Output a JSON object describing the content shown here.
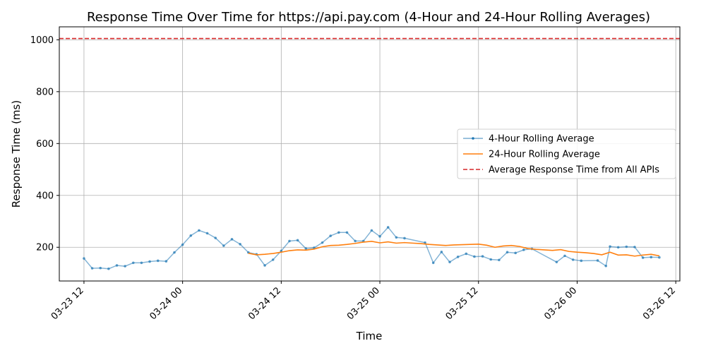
{
  "chart_data": {
    "type": "line",
    "title": "Response Time Over Time for https://api.pay.com (4-Hour and 24-Hour Rolling Averages)",
    "xlabel": "Time",
    "ylabel": "Response Time (ms)",
    "x_range": [
      "2024-03-23T09:00",
      "2024-03-26T12:30"
    ],
    "ylim": [
      70,
      1050
    ],
    "grid": true,
    "legend_position": "center-right",
    "x_ticks": [
      {
        "t": "2024-03-23T12:00",
        "label": "03-23 12"
      },
      {
        "t": "2024-03-24T00:00",
        "label": "03-24 00"
      },
      {
        "t": "2024-03-24T12:00",
        "label": "03-24 12"
      },
      {
        "t": "2024-03-25T00:00",
        "label": "03-25 00"
      },
      {
        "t": "2024-03-25T12:00",
        "label": "03-25 12"
      },
      {
        "t": "2024-03-26T00:00",
        "label": "03-26 00"
      },
      {
        "t": "2024-03-26T12:00",
        "label": "03-26 12"
      }
    ],
    "y_ticks": [
      {
        "v": 200,
        "label": "200"
      },
      {
        "v": 400,
        "label": "400"
      },
      {
        "v": 600,
        "label": "600"
      },
      {
        "v": 800,
        "label": "800"
      },
      {
        "v": 1000,
        "label": "1000"
      }
    ],
    "series": [
      {
        "name": "4-Hour Rolling Average",
        "color": "#1f77b4",
        "style": "line-with-dots",
        "points": [
          [
            "2024-03-23T12:00",
            157
          ],
          [
            "2024-03-23T13:00",
            119
          ],
          [
            "2024-03-23T14:00",
            120
          ],
          [
            "2024-03-23T15:00",
            117
          ],
          [
            "2024-03-23T16:00",
            130
          ],
          [
            "2024-03-23T17:00",
            127
          ],
          [
            "2024-03-23T18:00",
            140
          ],
          [
            "2024-03-23T19:00",
            140
          ],
          [
            "2024-03-23T20:00",
            145
          ],
          [
            "2024-03-23T21:00",
            148
          ],
          [
            "2024-03-23T22:00",
            146
          ],
          [
            "2024-03-23T23:00",
            180
          ],
          [
            "2024-03-24T00:00",
            210
          ],
          [
            "2024-03-24T01:00",
            245
          ],
          [
            "2024-03-24T02:00",
            265
          ],
          [
            "2024-03-24T03:00",
            254
          ],
          [
            "2024-03-24T04:00",
            236
          ],
          [
            "2024-03-24T05:00",
            206
          ],
          [
            "2024-03-24T06:00",
            231
          ],
          [
            "2024-03-24T07:00",
            212
          ],
          [
            "2024-03-24T08:00",
            180
          ],
          [
            "2024-03-24T09:00",
            173
          ],
          [
            "2024-03-24T10:00",
            130
          ],
          [
            "2024-03-24T11:00",
            152
          ],
          [
            "2024-03-24T12:00",
            186
          ],
          [
            "2024-03-24T13:00",
            224
          ],
          [
            "2024-03-24T14:00",
            227
          ],
          [
            "2024-03-24T15:00",
            195
          ],
          [
            "2024-03-24T16:00",
            198
          ],
          [
            "2024-03-24T17:00",
            218
          ],
          [
            "2024-03-24T18:00",
            244
          ],
          [
            "2024-03-24T19:00",
            257
          ],
          [
            "2024-03-24T20:00",
            257
          ],
          [
            "2024-03-24T21:00",
            224
          ],
          [
            "2024-03-24T22:00",
            224
          ],
          [
            "2024-03-24T23:00",
            265
          ],
          [
            "2024-03-25T00:00",
            242
          ],
          [
            "2024-03-25T01:00",
            277
          ],
          [
            "2024-03-25T02:00",
            238
          ],
          [
            "2024-03-25T03:00",
            235
          ],
          [
            "2024-03-25T05:30",
            218
          ],
          [
            "2024-03-25T06:30",
            140
          ],
          [
            "2024-03-25T07:30",
            182
          ],
          [
            "2024-03-25T08:30",
            143
          ],
          [
            "2024-03-25T09:30",
            163
          ],
          [
            "2024-03-25T10:30",
            175
          ],
          [
            "2024-03-25T11:30",
            164
          ],
          [
            "2024-03-25T12:30",
            165
          ],
          [
            "2024-03-25T13:30",
            153
          ],
          [
            "2024-03-25T14:30",
            151
          ],
          [
            "2024-03-25T15:30",
            181
          ],
          [
            "2024-03-25T16:30",
            178
          ],
          [
            "2024-03-25T17:30",
            190
          ],
          [
            "2024-03-25T18:30",
            194
          ],
          [
            "2024-03-25T21:30",
            143
          ],
          [
            "2024-03-25T22:30",
            167
          ],
          [
            "2024-03-25T23:30",
            152
          ],
          [
            "2024-03-26T00:30",
            148
          ],
          [
            "2024-03-26T02:30",
            149
          ],
          [
            "2024-03-26T03:30",
            128
          ],
          [
            "2024-03-26T04:00",
            203
          ],
          [
            "2024-03-26T05:00",
            200
          ],
          [
            "2024-03-26T06:00",
            202
          ],
          [
            "2024-03-26T07:00",
            201
          ],
          [
            "2024-03-26T08:00",
            160
          ],
          [
            "2024-03-26T09:00",
            162
          ],
          [
            "2024-03-26T10:00",
            161
          ]
        ]
      },
      {
        "name": "24-Hour Rolling Average",
        "color": "#ff7f0e",
        "style": "line",
        "points": [
          [
            "2024-03-24T08:00",
            177
          ],
          [
            "2024-03-24T09:00",
            171
          ],
          [
            "2024-03-24T10:00",
            173
          ],
          [
            "2024-03-24T11:00",
            176
          ],
          [
            "2024-03-24T12:00",
            181
          ],
          [
            "2024-03-24T13:00",
            187
          ],
          [
            "2024-03-24T14:00",
            190
          ],
          [
            "2024-03-24T15:00",
            189
          ],
          [
            "2024-03-24T16:00",
            193
          ],
          [
            "2024-03-24T17:00",
            202
          ],
          [
            "2024-03-24T18:00",
            207
          ],
          [
            "2024-03-24T19:00",
            208
          ],
          [
            "2024-03-24T20:00",
            211
          ],
          [
            "2024-03-24T21:00",
            215
          ],
          [
            "2024-03-24T22:00",
            220
          ],
          [
            "2024-03-24T23:00",
            223
          ],
          [
            "2024-03-25T00:00",
            217
          ],
          [
            "2024-03-25T01:00",
            221
          ],
          [
            "2024-03-25T02:00",
            216
          ],
          [
            "2024-03-25T03:00",
            218
          ],
          [
            "2024-03-25T04:00",
            216
          ],
          [
            "2024-03-25T05:00",
            214
          ],
          [
            "2024-03-25T06:00",
            211
          ],
          [
            "2024-03-25T07:00",
            209
          ],
          [
            "2024-03-25T08:00",
            207
          ],
          [
            "2024-03-25T09:00",
            209
          ],
          [
            "2024-03-25T10:00",
            210
          ],
          [
            "2024-03-25T11:00",
            211
          ],
          [
            "2024-03-25T12:00",
            212
          ],
          [
            "2024-03-25T13:00",
            208
          ],
          [
            "2024-03-25T14:00",
            200
          ],
          [
            "2024-03-25T15:00",
            205
          ],
          [
            "2024-03-25T16:00",
            207
          ],
          [
            "2024-03-25T17:00",
            203
          ],
          [
            "2024-03-25T18:00",
            195
          ],
          [
            "2024-03-25T19:00",
            192
          ],
          [
            "2024-03-25T20:00",
            190
          ],
          [
            "2024-03-25T21:00",
            188
          ],
          [
            "2024-03-25T22:00",
            191
          ],
          [
            "2024-03-25T23:00",
            184
          ],
          [
            "2024-03-26T00:00",
            181
          ],
          [
            "2024-03-26T01:00",
            179
          ],
          [
            "2024-03-26T02:00",
            176
          ],
          [
            "2024-03-26T03:00",
            171
          ],
          [
            "2024-03-26T04:00",
            181
          ],
          [
            "2024-03-26T05:00",
            170
          ],
          [
            "2024-03-26T06:00",
            171
          ],
          [
            "2024-03-26T07:00",
            166
          ],
          [
            "2024-03-26T08:00",
            170
          ],
          [
            "2024-03-26T09:00",
            173
          ],
          [
            "2024-03-26T10:00",
            167
          ]
        ]
      }
    ],
    "reference_lines": [
      {
        "name": "Average Response Time from All APIs",
        "value": 1005,
        "color": "#d62728",
        "style": "dashed"
      }
    ],
    "legend": [
      {
        "label": "4-Hour Rolling Average",
        "color": "#1f77b4",
        "style": "line-with-dots"
      },
      {
        "label": "24-Hour Rolling Average",
        "color": "#ff7f0e",
        "style": "line"
      },
      {
        "label": "Average Response Time from All APIs",
        "color": "#d62728",
        "style": "dashed"
      }
    ]
  }
}
